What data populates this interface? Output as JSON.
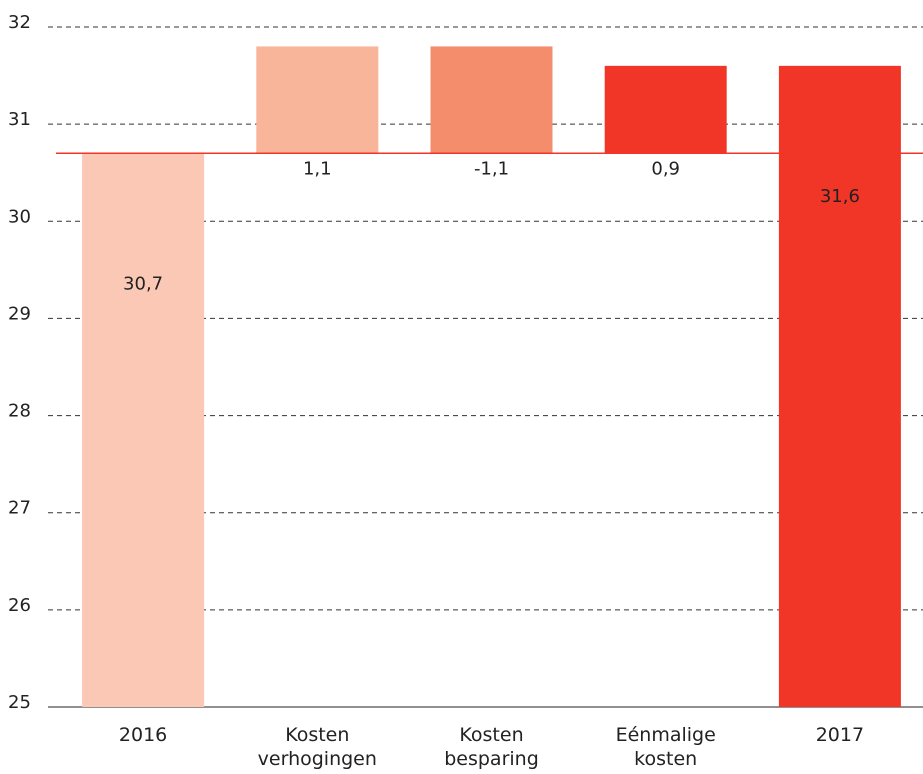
{
  "chart_data": {
    "type": "waterfall",
    "categories": [
      "2016",
      "Kosten verhogingen",
      "Kosten besparing",
      "Eénmalige kosten",
      "2017"
    ],
    "values": [
      30.7,
      1.1,
      -1.1,
      0.9,
      31.6
    ],
    "value_labels": [
      "30,7",
      "1,1",
      "-1,1",
      "0,9",
      "31,6"
    ],
    "colors": [
      "#fac8b4",
      "#f9b59a",
      "#f48d6c",
      "#f13627",
      "#f13627"
    ],
    "ylim": [
      25,
      32
    ],
    "yticks": [
      25,
      26,
      27,
      28,
      29,
      30,
      31,
      32
    ],
    "grid": true
  }
}
